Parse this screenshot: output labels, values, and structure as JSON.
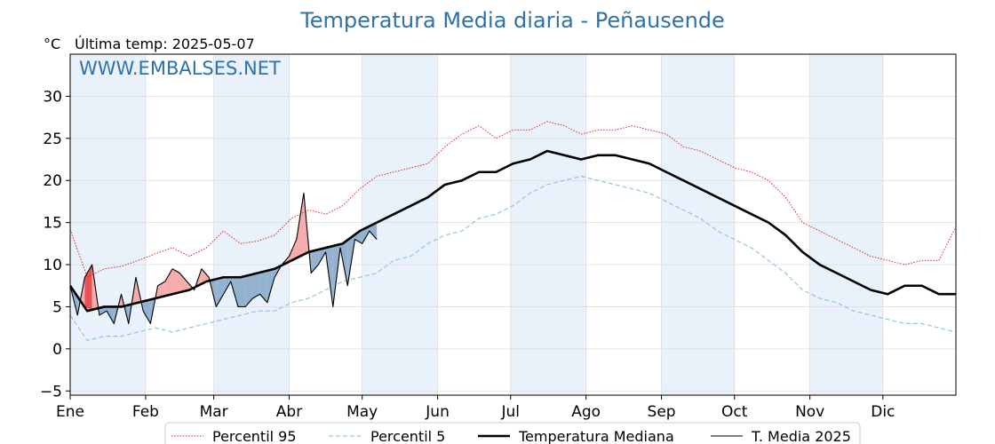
{
  "colors": {
    "p95": "#e41a1c",
    "p5": "#8ec6dc",
    "median": "#000000",
    "current": "#000000",
    "above_fill": "#f4a8a8",
    "above_fill_strong": "#e8474a",
    "below_fill": "#8eaecd",
    "below_fill_strong": "#2f70ad",
    "band": "#e9f1fa",
    "title": "#2e72a8"
  },
  "chart_data": {
    "type": "line",
    "title": "Temperatura Media diaria - Peñausende",
    "ylabel": "°C",
    "last_temp_label": "Última temp: 2025-05-07",
    "watermark": "WWW.EMBALSES.NET",
    "x_unit": "day of year",
    "xlim": [
      1,
      365
    ],
    "ylim": [
      -5.5,
      35
    ],
    "yticks": [
      -5,
      0,
      5,
      10,
      15,
      20,
      25,
      30
    ],
    "ytick_labels": [
      "−5",
      "0",
      "5",
      "10",
      "15",
      "20",
      "25",
      "30"
    ],
    "grid": true,
    "legend_position": "bottom",
    "month_ticks": [
      {
        "label": "Ene",
        "day": 1
      },
      {
        "label": "Feb",
        "day": 32
      },
      {
        "label": "Mar",
        "day": 60
      },
      {
        "label": "Abr",
        "day": 91
      },
      {
        "label": "May",
        "day": 121
      },
      {
        "label": "Jun",
        "day": 152
      },
      {
        "label": "Jul",
        "day": 182
      },
      {
        "label": "Ago",
        "day": 213
      },
      {
        "label": "Sep",
        "day": 244
      },
      {
        "label": "Oct",
        "day": 274
      },
      {
        "label": "Nov",
        "day": 305
      },
      {
        "label": "Dic",
        "day": 335
      }
    ],
    "shaded_month_bands": [
      [
        1,
        32
      ],
      [
        60,
        91
      ],
      [
        121,
        152
      ],
      [
        182,
        213
      ],
      [
        244,
        274
      ],
      [
        305,
        335
      ]
    ],
    "series": [
      {
        "name": "Percentil 95",
        "style": "dotted-red",
        "x": [
          1,
          8,
          15,
          22,
          29,
          36,
          43,
          50,
          57,
          64,
          71,
          78,
          85,
          92,
          99,
          106,
          113,
          120,
          127,
          134,
          141,
          148,
          155,
          162,
          169,
          176,
          183,
          190,
          197,
          204,
          211,
          218,
          225,
          232,
          239,
          246,
          253,
          260,
          267,
          274,
          281,
          288,
          295,
          302,
          309,
          316,
          323,
          330,
          337,
          344,
          351,
          358,
          365
        ],
        "y": [
          14.2,
          8.5,
          9.5,
          9.8,
          10.5,
          11.3,
          12.0,
          11.0,
          12.0,
          14.0,
          12.5,
          12.8,
          13.5,
          15.5,
          16.5,
          16.0,
          17.0,
          19.0,
          20.5,
          21.0,
          21.5,
          22.0,
          24.0,
          25.5,
          26.5,
          25.0,
          26.0,
          26.0,
          27.0,
          26.5,
          25.5,
          26.0,
          26.0,
          26.5,
          26.0,
          25.5,
          24.0,
          23.5,
          22.5,
          21.5,
          21.0,
          20.0,
          18.0,
          15.0,
          14.0,
          13.0,
          12.0,
          11.0,
          10.5,
          10.0,
          10.5,
          10.5,
          14.5
        ]
      },
      {
        "name": "Percentil 5",
        "style": "dashed-blue",
        "x": [
          1,
          8,
          15,
          22,
          29,
          36,
          43,
          50,
          57,
          64,
          71,
          78,
          85,
          92,
          99,
          106,
          113,
          120,
          127,
          134,
          141,
          148,
          155,
          162,
          169,
          176,
          183,
          190,
          197,
          204,
          211,
          218,
          225,
          232,
          239,
          246,
          253,
          260,
          267,
          274,
          281,
          288,
          295,
          302,
          309,
          316,
          323,
          330,
          337,
          344,
          351,
          358,
          365
        ],
        "y": [
          4.0,
          1.0,
          1.5,
          1.5,
          2.0,
          2.5,
          2.0,
          2.5,
          3.0,
          3.5,
          4.0,
          4.5,
          4.5,
          5.5,
          6.0,
          7.0,
          8.0,
          8.5,
          9.0,
          10.5,
          11.0,
          12.5,
          13.5,
          14.0,
          15.5,
          16.0,
          17.0,
          18.5,
          19.5,
          20.0,
          20.5,
          20.0,
          19.5,
          19.0,
          18.5,
          17.5,
          16.5,
          15.5,
          14.0,
          13.0,
          12.0,
          10.5,
          9.0,
          7.0,
          6.0,
          5.5,
          4.5,
          4.0,
          3.5,
          3.0,
          3.0,
          2.5,
          2.0
        ]
      },
      {
        "name": "Temperatura Mediana",
        "style": "solid-thick-black",
        "x": [
          1,
          8,
          15,
          22,
          29,
          36,
          43,
          50,
          57,
          64,
          71,
          78,
          85,
          92,
          99,
          106,
          113,
          120,
          127,
          134,
          141,
          148,
          155,
          162,
          169,
          176,
          183,
          190,
          197,
          204,
          211,
          218,
          225,
          232,
          239,
          246,
          253,
          260,
          267,
          274,
          281,
          288,
          295,
          302,
          309,
          316,
          323,
          330,
          337,
          344,
          351,
          358,
          365
        ],
        "y": [
          7.5,
          4.5,
          5.0,
          5.0,
          5.5,
          6.0,
          6.5,
          7.0,
          8.0,
          8.5,
          8.5,
          9.0,
          9.5,
          10.5,
          11.5,
          12.0,
          12.5,
          14.0,
          15.0,
          16.0,
          17.0,
          18.0,
          19.5,
          20.0,
          21.0,
          21.0,
          22.0,
          22.5,
          23.5,
          23.0,
          22.5,
          23.0,
          23.0,
          22.5,
          22.0,
          21.0,
          20.0,
          19.0,
          18.0,
          17.0,
          16.0,
          15.0,
          13.5,
          11.5,
          10.0,
          9.0,
          8.0,
          7.0,
          6.5,
          7.5,
          7.5,
          6.5,
          6.5
        ]
      },
      {
        "name": "T. Media 2025",
        "style": "solid-thin-black",
        "x": [
          1,
          4,
          7,
          10,
          13,
          16,
          19,
          22,
          25,
          28,
          31,
          34,
          37,
          40,
          43,
          46,
          49,
          52,
          55,
          58,
          61,
          64,
          67,
          70,
          73,
          76,
          79,
          82,
          85,
          88,
          91,
          94,
          97,
          100,
          103,
          106,
          109,
          112,
          115,
          118,
          121,
          124,
          127
        ],
        "y": [
          7.5,
          4.0,
          8.5,
          10.0,
          4.0,
          4.5,
          3.0,
          6.5,
          3.0,
          8.5,
          4.5,
          3.0,
          7.5,
          8.0,
          9.5,
          9.0,
          8.0,
          7.0,
          9.5,
          8.5,
          5.0,
          6.5,
          8.0,
          5.0,
          5.0,
          6.0,
          6.5,
          5.5,
          8.5,
          10.0,
          11.0,
          13.0,
          18.5,
          9.0,
          10.0,
          11.5,
          5.0,
          12.0,
          7.5,
          13.0,
          12.5,
          14.0,
          13.0
        ]
      }
    ],
    "legend": [
      {
        "label": "Percentil 95",
        "style": "dotted-red"
      },
      {
        "label": "Percentil 5",
        "style": "dashed-blue"
      },
      {
        "label": "Temperatura Mediana",
        "style": "solid-thick-black"
      },
      {
        "label": "T. Media 2025",
        "style": "solid-thin-black"
      }
    ]
  }
}
